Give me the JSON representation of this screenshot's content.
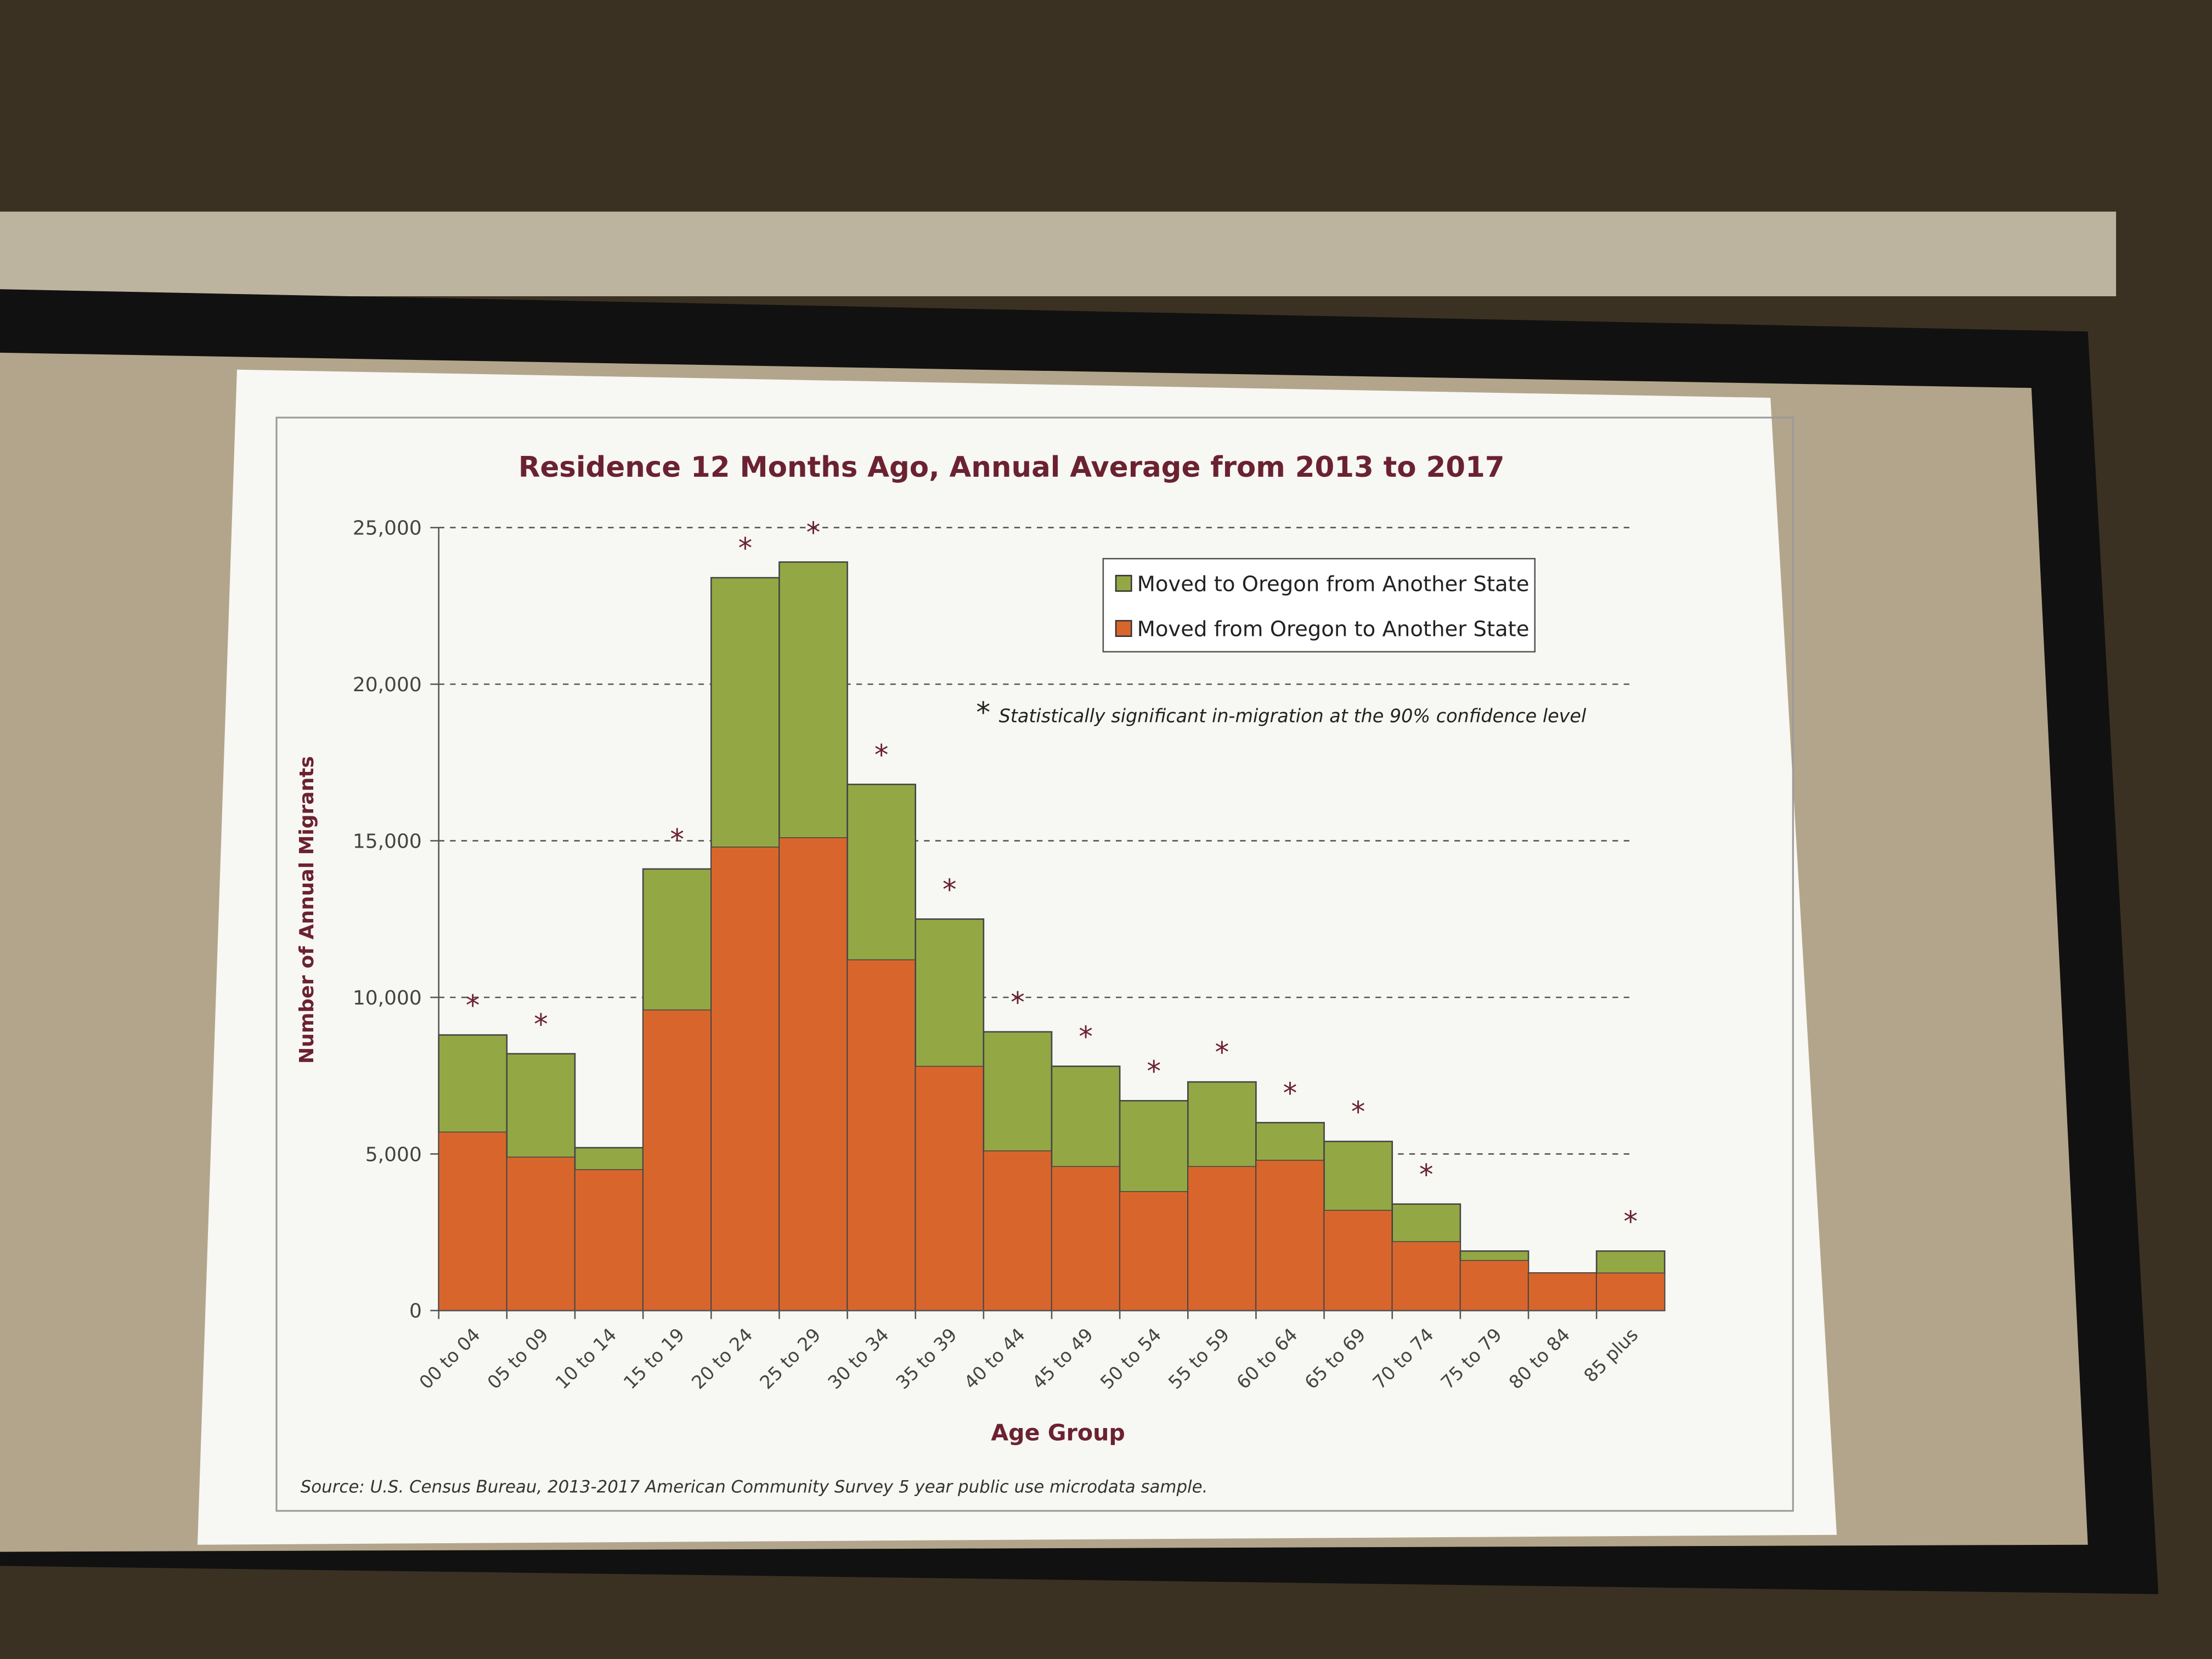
{
  "chart_data": {
    "type": "bar",
    "title": "Residence 12 Months Ago, Annual Average from 2013 to 2017",
    "xlabel": "Age Group",
    "ylabel": "Number of Annual Migrants",
    "ylim": [
      0,
      25000
    ],
    "yticks": [
      0,
      5000,
      10000,
      15000,
      20000,
      25000
    ],
    "ytick_labels": [
      "0",
      "5,000",
      "10,000",
      "15,000",
      "20,000",
      "25,000"
    ],
    "grid": "dashed horizontal",
    "legend_position": "top-right",
    "categories": [
      "00 to 04",
      "05 to 09",
      "10 to 14",
      "15 to 19",
      "20 to 24",
      "25 to 29",
      "30 to 34",
      "35 to 39",
      "40 to 44",
      "45 to 49",
      "50 to 54",
      "55 to 59",
      "60 to 64",
      "65 to 69",
      "70 to 74",
      "75 to 79",
      "80 to 84",
      "85 plus"
    ],
    "series": [
      {
        "name": "Moved to Oregon from Another State",
        "color": "#93a845",
        "values": [
          8800,
          8200,
          5200,
          14100,
          23400,
          23900,
          16800,
          12500,
          8900,
          7800,
          6700,
          7300,
          6000,
          5400,
          3400,
          1900,
          1200,
          1900
        ]
      },
      {
        "name": "Moved from Oregon to Another State",
        "color": "#d8662c",
        "values": [
          5700,
          4900,
          4500,
          9600,
          14800,
          15100,
          11200,
          7800,
          5100,
          4600,
          3800,
          4600,
          4800,
          3200,
          2200,
          1600,
          1200,
          1200
        ]
      }
    ],
    "significant": [
      true,
      true,
      false,
      true,
      true,
      true,
      true,
      true,
      true,
      true,
      true,
      true,
      true,
      true,
      true,
      false,
      false,
      true
    ],
    "significance_marker": "*",
    "annotation": "Statistically significant in-migration at the 90% confidence level",
    "source": "Source:  U.S. Census Bureau, 2013-2017 American Community Survey 5 year public use microdata sample."
  }
}
